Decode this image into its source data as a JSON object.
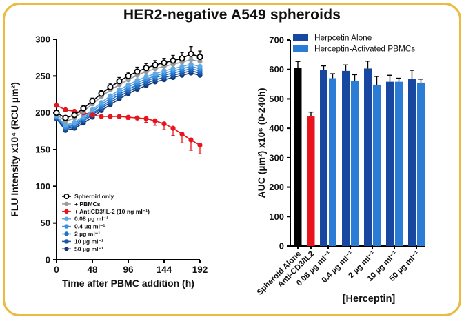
{
  "figure": {
    "title": "HER2-negative A549 spheroids",
    "border_color": "#E9BC3F",
    "background": "#FFFFFF"
  },
  "chart_data": [
    {
      "type": "line",
      "title": "",
      "xlabel": "Time after PBMC addition (h)",
      "ylabel": "FLU Intensity x10⁴ (RCU µm²)",
      "xlim": [
        0,
        192
      ],
      "ylim": [
        0,
        300
      ],
      "xticks": [
        0,
        48,
        96,
        144,
        192
      ],
      "yticks": [
        0,
        50,
        100,
        150,
        200,
        250,
        300
      ],
      "grid": false,
      "legend_position": "lower-left",
      "x": [
        0,
        12,
        24,
        36,
        48,
        60,
        72,
        84,
        96,
        108,
        120,
        132,
        144,
        156,
        168,
        180,
        192
      ],
      "series": [
        {
          "name": "Spheroid only",
          "color": "#000000",
          "marker": "open-circle",
          "err_dir": "up",
          "err": [
            3,
            3,
            3,
            3,
            4,
            4,
            5,
            5,
            5,
            6,
            6,
            6,
            6,
            7,
            8,
            10,
            8
          ],
          "values": [
            200,
            193,
            197,
            206,
            216,
            226,
            235,
            243,
            250,
            256,
            261,
            265,
            268,
            271,
            274,
            280,
            276
          ]
        },
        {
          "name": "+ PBMCs",
          "color": "#9A9A9A",
          "marker": "circle",
          "err_dir": "up",
          "err": 3,
          "values": [
            198,
            188,
            193,
            202,
            212,
            222,
            231,
            238,
            245,
            251,
            256,
            260,
            263,
            266,
            269,
            272,
            270
          ]
        },
        {
          "name": "+ AntiCD3/IL-2 (10 ng ml⁻¹)",
          "color": "#E8151D",
          "marker": "circle",
          "err_dir": "down",
          "err": [
            2,
            2,
            2,
            2,
            2,
            2,
            2,
            3,
            3,
            4,
            5,
            6,
            8,
            10,
            12,
            14,
            12
          ],
          "values": [
            210,
            204,
            202,
            200,
            197,
            195,
            195,
            195,
            194,
            193,
            192,
            189,
            185,
            179,
            171,
            163,
            156
          ]
        },
        {
          "name": "0.08 µg ml⁻¹",
          "color": "#5FA8E6",
          "marker": "circle",
          "err_dir": "both",
          "err": 2,
          "values": [
            196,
            183,
            187,
            195,
            204,
            214,
            223,
            231,
            238,
            244,
            249,
            253,
            257,
            260,
            263,
            266,
            263
          ]
        },
        {
          "name": "0.4 µg ml⁻¹",
          "color": "#3E8EDE",
          "marker": "circle",
          "err_dir": "both",
          "err": 2,
          "values": [
            195,
            181,
            185,
            193,
            202,
            211,
            220,
            228,
            235,
            241,
            246,
            250,
            254,
            257,
            260,
            263,
            260
          ]
        },
        {
          "name": "2 µg ml⁻¹",
          "color": "#2173C8",
          "marker": "circle",
          "err_dir": "both",
          "err": 2,
          "values": [
            194,
            180,
            183,
            191,
            199,
            208,
            217,
            225,
            232,
            238,
            243,
            248,
            251,
            254,
            257,
            260,
            257
          ]
        },
        {
          "name": "10 µg ml⁻¹",
          "color": "#1A57A8",
          "marker": "circle",
          "err_dir": "both",
          "err": 2,
          "values": [
            193,
            178,
            181,
            189,
            197,
            206,
            214,
            222,
            229,
            235,
            240,
            245,
            248,
            251,
            254,
            257,
            254
          ]
        },
        {
          "name": "50 µg ml⁻¹",
          "color": "#123A78",
          "marker": "circle",
          "err_dir": "both",
          "err": 2,
          "values": [
            192,
            176,
            179,
            186,
            194,
            203,
            211,
            219,
            226,
            232,
            237,
            242,
            245,
            248,
            251,
            254,
            251
          ]
        }
      ]
    },
    {
      "type": "bar",
      "title": "",
      "xlabel": "[Herceptin]",
      "ylabel": "AUC (µm²) x10⁶ (0-240h)",
      "ylim": [
        0,
        700
      ],
      "yticks": [
        0,
        100,
        200,
        300,
        400,
        500,
        600,
        700
      ],
      "grid": false,
      "legend_position": "upper-left",
      "legend": [
        {
          "label": "Herpcetin Alone",
          "color": "#17479E"
        },
        {
          "label": "Herceptin-Activated PBMCs",
          "color": "#2B7CD5"
        }
      ],
      "groups": [
        {
          "category": "Spheroid Alone",
          "bars": [
            {
              "series": "Spheroid Alone",
              "value": 605,
              "err": 22,
              "color": "#000000"
            }
          ]
        },
        {
          "category": "Anti-CD3/IL2",
          "bars": [
            {
              "series": "Anti-CD3/IL2",
              "value": 440,
              "err": 15,
              "color": "#E8151D"
            }
          ]
        },
        {
          "category": "0.08 µg ml⁻¹",
          "bars": [
            {
              "series": "Herpcetin Alone",
              "value": 597,
              "err": 15,
              "color": "#17479E"
            },
            {
              "series": "Herceptin-Activated PBMCs",
              "value": 570,
              "err": 15,
              "color": "#2B7CD5"
            }
          ]
        },
        {
          "category": "0.4 µg ml⁻¹",
          "bars": [
            {
              "series": "Herpcetin Alone",
              "value": 595,
              "err": 20,
              "color": "#17479E"
            },
            {
              "series": "Herceptin-Activated PBMCs",
              "value": 562,
              "err": 20,
              "color": "#2B7CD5"
            }
          ]
        },
        {
          "category": "2 µg ml⁻¹",
          "bars": [
            {
              "series": "Herpcetin Alone",
              "value": 603,
              "err": 25,
              "color": "#17479E"
            },
            {
              "series": "Herceptin-Activated PBMCs",
              "value": 548,
              "err": 28,
              "color": "#2B7CD5"
            }
          ]
        },
        {
          "category": "10 µg ml⁻¹",
          "bars": [
            {
              "series": "Herpcetin Alone",
              "value": 558,
              "err": 22,
              "color": "#17479E"
            },
            {
              "series": "Herceptin-Activated PBMCs",
              "value": 558,
              "err": 12,
              "color": "#2B7CD5"
            }
          ]
        },
        {
          "category": "50 µg ml⁻¹",
          "bars": [
            {
              "series": "Herpcetin Alone",
              "value": 567,
              "err": 30,
              "color": "#17479E"
            },
            {
              "series": "Herceptin-Activated PBMCs",
              "value": 555,
              "err": 12,
              "color": "#2B7CD5"
            }
          ]
        }
      ]
    }
  ]
}
